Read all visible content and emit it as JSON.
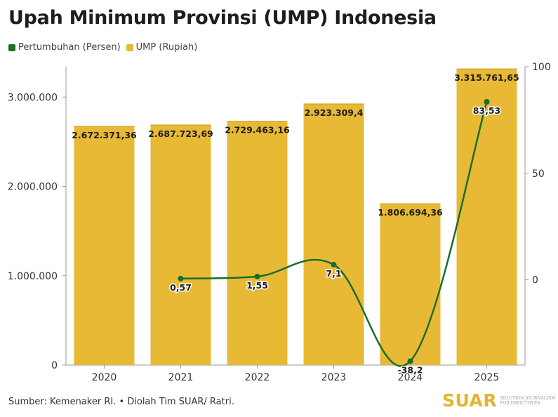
{
  "title": "Upah Minimum Provinsi (UMP) Indonesia",
  "legend": [
    {
      "label": "Pertumbuhan (Persen)",
      "color": "#1a6e2a"
    },
    {
      "label": "UMP (Rupiah)",
      "color": "#e8b935"
    }
  ],
  "source": "Sumber: Kemenaker RI. • Diolah Tim SUAR/ Ratri.",
  "logo": {
    "word": "SUAR",
    "tagline": "SOLUTION JOURNALISM FOR EXECUTIVES"
  },
  "chart_data": {
    "type": "bar+line",
    "categories": [
      "2020",
      "2021",
      "2022",
      "2023",
      "2024",
      "2025"
    ],
    "series": [
      {
        "name": "UMP (Rupiah)",
        "type": "bar",
        "axis": "left",
        "color": "#e8b935",
        "values": [
          2672371.36,
          2687723.69,
          2729463.16,
          2923309.4,
          1806694.36,
          3315761.65
        ],
        "labels": [
          "2.672.371,36",
          "2.687.723,69",
          "2.729.463,16",
          "2.923.309,4",
          "1.806.694,36",
          "3.315.761,65"
        ]
      },
      {
        "name": "Pertumbuhan (Persen)",
        "type": "line",
        "axis": "right",
        "color": "#1a6e2a",
        "values": [
          null,
          0.57,
          1.55,
          7.1,
          -38.2,
          83.53
        ],
        "labels": [
          "",
          "0,57",
          "1,55",
          "7,1",
          "-38,2",
          "83,53"
        ]
      }
    ],
    "y_left": {
      "range": [
        0,
        3340000
      ],
      "ticks": [
        0,
        1000000,
        2000000,
        3000000
      ],
      "tick_labels": [
        "0",
        "1.000.000",
        "2.000.000",
        "3.000.000"
      ]
    },
    "y_right": {
      "range": [
        -40,
        100
      ],
      "ticks": [
        0,
        50,
        100
      ],
      "tick_labels": [
        "0",
        "50",
        "100"
      ]
    },
    "grid": false,
    "legend_position": "top-left"
  }
}
